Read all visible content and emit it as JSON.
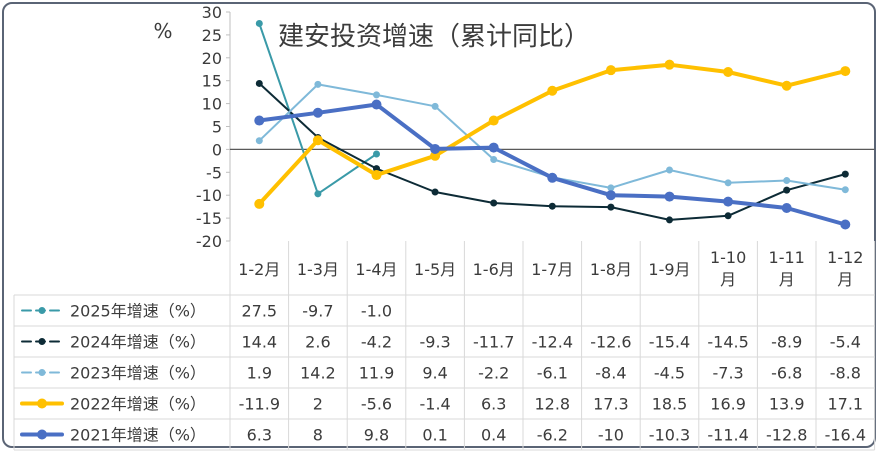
{
  "chart_data": {
    "type": "line",
    "title": "建安投资增速（累计同比）",
    "ylabel": "%",
    "ylim": [
      -20,
      30
    ],
    "yticks": [
      30,
      25,
      20,
      15,
      10,
      5,
      0,
      -5,
      -10,
      -15,
      -20
    ],
    "grid": false,
    "legend": "table-left",
    "categories": [
      "1-2月",
      "1-3月",
      "1-4月",
      "1-5月",
      "1-6月",
      "1-7月",
      "1-8月",
      "1-9月",
      "1-10月",
      "1-11月",
      "1-12月"
    ],
    "category_lines": [
      [
        "1-2月"
      ],
      [
        "1-3月"
      ],
      [
        "1-4月"
      ],
      [
        "1-5月"
      ],
      [
        "1-6月"
      ],
      [
        "1-7月"
      ],
      [
        "1-8月"
      ],
      [
        "1-9月"
      ],
      [
        "1-10",
        "月"
      ],
      [
        "1-11",
        "月"
      ],
      [
        "1-12",
        "月"
      ]
    ],
    "series": [
      {
        "name": "2025年增速（%）",
        "color": "#3a9aa8",
        "width": 2,
        "marker": 3.5,
        "values": [
          27.5,
          -9.7,
          -1.0,
          null,
          null,
          null,
          null,
          null,
          null,
          null,
          null
        ],
        "labels": [
          "27.5",
          "-9.7",
          "-1.0",
          "",
          "",
          "",
          "",
          "",
          "",
          "",
          ""
        ]
      },
      {
        "name": "2024年增速（%）",
        "color": "#0d2b36",
        "width": 2,
        "marker": 3.5,
        "values": [
          14.4,
          2.6,
          -4.2,
          -9.3,
          -11.7,
          -12.4,
          -12.6,
          -15.4,
          -14.5,
          -8.9,
          -5.4
        ],
        "labels": [
          "14.4",
          "2.6",
          "-4.2",
          "-9.3",
          "-11.7",
          "-12.4",
          "-12.6",
          "-15.4",
          "-14.5",
          "-8.9",
          "-5.4"
        ]
      },
      {
        "name": "2023年增速（%）",
        "color": "#7fb9d9",
        "width": 2,
        "marker": 3.5,
        "values": [
          1.9,
          14.2,
          11.9,
          9.4,
          -2.2,
          -6.1,
          -8.4,
          -4.5,
          -7.3,
          -6.8,
          -8.8
        ],
        "labels": [
          "1.9",
          "14.2",
          "11.9",
          "9.4",
          "-2.2",
          "-6.1",
          "-8.4",
          "-4.5",
          "-7.3",
          "-6.8",
          "-8.8"
        ]
      },
      {
        "name": "2022年增速（%）",
        "color": "#ffc000",
        "width": 4,
        "marker": 5,
        "values": [
          -11.9,
          2,
          -5.6,
          -1.4,
          6.3,
          12.8,
          17.3,
          18.5,
          16.9,
          13.9,
          17.1
        ],
        "labels": [
          "-11.9",
          "2",
          "-5.6",
          "-1.4",
          "6.3",
          "12.8",
          "17.3",
          "18.5",
          "16.9",
          "13.9",
          "17.1"
        ]
      },
      {
        "name": "2021年增速（%）",
        "color": "#4a6fc4",
        "width": 4,
        "marker": 5,
        "values": [
          6.3,
          8,
          9.8,
          0.1,
          0.4,
          -6.2,
          -10,
          -10.3,
          -11.4,
          -12.8,
          -16.4
        ],
        "labels": [
          "6.3",
          "8",
          "9.8",
          "0.1",
          "0.4",
          "-6.2",
          "-10",
          "-10.3",
          "-11.4",
          "-12.8",
          "-16.4"
        ]
      }
    ]
  }
}
